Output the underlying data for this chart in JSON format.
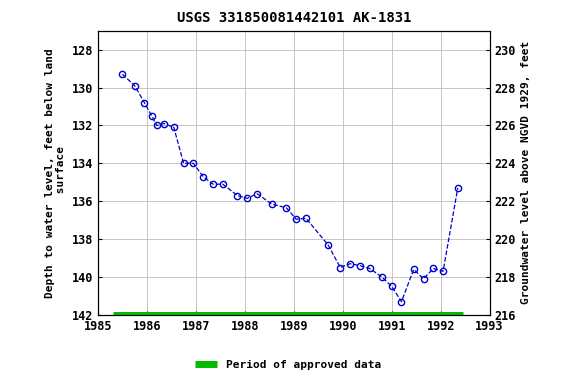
{
  "title": "USGS 331850081442101 AK-1831",
  "ylabel_left": "Depth to water level, feet below land\n surface",
  "ylabel_right": "Groundwater level above NGVD 1929, feet",
  "ylim_left": [
    142,
    127
  ],
  "ylim_right": [
    216,
    231
  ],
  "xlim": [
    1985,
    1993
  ],
  "xticks": [
    1985,
    1986,
    1987,
    1988,
    1989,
    1990,
    1991,
    1992,
    1993
  ],
  "yticks_left": [
    128,
    130,
    132,
    134,
    136,
    138,
    140,
    142
  ],
  "yticks_right": [
    216,
    218,
    220,
    222,
    224,
    226,
    228,
    230
  ],
  "x_data": [
    1985.5,
    1985.75,
    1985.95,
    1986.1,
    1986.2,
    1986.35,
    1986.55,
    1986.75,
    1986.95,
    1987.15,
    1987.35,
    1987.55,
    1987.85,
    1988.05,
    1988.25,
    1988.55,
    1988.85,
    1989.05,
    1989.25,
    1989.7,
    1989.95,
    1990.15,
    1990.35,
    1990.55,
    1990.8,
    1991.0,
    1991.2,
    1991.45,
    1991.65,
    1991.85,
    1992.05,
    1992.35
  ],
  "y_data": [
    129.3,
    129.9,
    130.8,
    131.5,
    132.0,
    131.9,
    132.1,
    134.0,
    134.0,
    134.7,
    135.1,
    135.1,
    135.7,
    135.85,
    135.6,
    136.15,
    136.35,
    136.95,
    136.9,
    138.3,
    139.5,
    139.3,
    139.4,
    139.55,
    140.0,
    140.5,
    141.3,
    139.6,
    140.1,
    139.55,
    139.7,
    135.3
  ],
  "line_color": "#0000cc",
  "marker_color": "#0000cc",
  "background_color": "#ffffff",
  "grid_color": "#bbbbbb",
  "approved_bar_color": "#00bb00",
  "approved_bar_y": 142,
  "approved_bar_xstart": 1985.3,
  "approved_bar_xend": 1992.45,
  "legend_label": "Period of approved data",
  "title_fontsize": 10,
  "label_fontsize": 8,
  "tick_fontsize": 8.5
}
